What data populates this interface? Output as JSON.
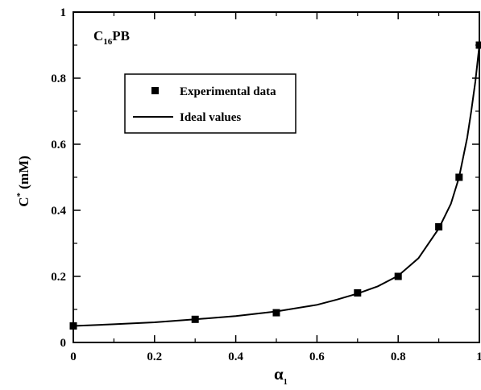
{
  "chart_data": {
    "type": "scatter",
    "title": "",
    "annotation": {
      "base": "C",
      "subscript": "16",
      "suffix": "PB"
    },
    "xlabel": {
      "base": "α",
      "subscript": "1"
    },
    "ylabel": {
      "base": "C",
      "superscript": "*",
      "rest": " (mM)"
    },
    "xlim": [
      0,
      1
    ],
    "ylim": [
      0,
      1
    ],
    "x_ticks": [
      0,
      0.2,
      0.4,
      0.6,
      0.8,
      1
    ],
    "x_tick_labels": [
      "0",
      "0.2",
      "0.4",
      "0.6",
      "0.8",
      "1"
    ],
    "y_ticks": [
      0,
      0.2,
      0.4,
      0.6,
      0.8,
      1
    ],
    "y_tick_labels": [
      "0",
      "0.2",
      "0.4",
      "0.6",
      "0.8",
      "1"
    ],
    "grid": false,
    "legend_placement": "upper-left",
    "series": [
      {
        "name": "Experimental data",
        "kind": "markers",
        "marker": "square",
        "color": "#000000",
        "x": [
          0,
          0.3,
          0.5,
          0.7,
          0.8,
          0.9,
          0.95,
          1.0
        ],
        "y": [
          0.05,
          0.07,
          0.09,
          0.15,
          0.2,
          0.35,
          0.5,
          0.9
        ]
      },
      {
        "name": "Ideal values",
        "kind": "line",
        "color": "#000000",
        "x": [
          0,
          0.1,
          0.2,
          0.3,
          0.4,
          0.5,
          0.6,
          0.65,
          0.7,
          0.75,
          0.8,
          0.85,
          0.9,
          0.93,
          0.95,
          0.97,
          0.98,
          0.99,
          1.0
        ],
        "y": [
          0.05,
          0.055,
          0.061,
          0.07,
          0.08,
          0.094,
          0.114,
          0.13,
          0.148,
          0.17,
          0.202,
          0.255,
          0.345,
          0.42,
          0.5,
          0.62,
          0.7,
          0.79,
          0.9
        ]
      }
    ]
  }
}
